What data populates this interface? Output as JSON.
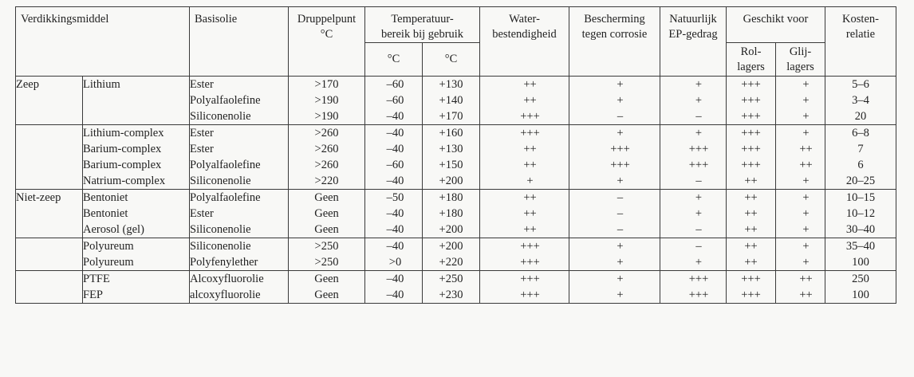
{
  "header": {
    "verdikkingsmiddel": "Verdikkingsmiddel",
    "basisolie": "Basisolie",
    "druppelpunt": [
      "Druppelpunt",
      "°C"
    ],
    "temperatuur": [
      "Temperatuur-",
      "bereik bij gebruik"
    ],
    "temp_min_unit": "°C",
    "temp_max_unit": "°C",
    "water": [
      "Water-",
      "bestendigheid"
    ],
    "corrosie": [
      "Bescherming",
      "tegen corrosie"
    ],
    "ep": [
      "Natuurlijk",
      "EP-gedrag"
    ],
    "geschikt": "Geschikt voor",
    "rol": [
      "Rol-",
      "lagers"
    ],
    "glij": [
      "Glij-",
      "lagers"
    ],
    "kosten": [
      "Kosten-",
      "relatie"
    ]
  },
  "groups": [
    {
      "category": "Zeep",
      "rows": [
        {
          "type": "Lithium",
          "base": "Ester",
          "drop": ">170",
          "tmin": "–60",
          "tmax": "+130",
          "water": "++",
          "corr": "+",
          "ep": "+",
          "rol": "+++",
          "glij": "+",
          "cost": "5–6"
        },
        {
          "type": "",
          "base": "Polyalfaolefine",
          "drop": ">190",
          "tmin": "–60",
          "tmax": "+140",
          "water": "++",
          "corr": "+",
          "ep": "+",
          "rol": "+++",
          "glij": "+",
          "cost": "3–4"
        },
        {
          "type": "",
          "base": "Siliconenolie",
          "drop": ">190",
          "tmin": "–40",
          "tmax": "+170",
          "water": "+++",
          "corr": "–",
          "ep": "–",
          "rol": "+++",
          "glij": "+",
          "cost": "20"
        }
      ]
    },
    {
      "category": "",
      "rows": [
        {
          "type": "Lithium-complex",
          "base": "Ester",
          "drop": ">260",
          "tmin": "–40",
          "tmax": "+160",
          "water": "+++",
          "corr": "+",
          "ep": "+",
          "rol": "+++",
          "glij": "+",
          "cost": "6–8"
        },
        {
          "type": "Barium-complex",
          "base": "Ester",
          "drop": ">260",
          "tmin": "–40",
          "tmax": "+130",
          "water": "++",
          "corr": "+++",
          "ep": "+++",
          "rol": "+++",
          "glij": "++",
          "cost": "7"
        },
        {
          "type": "Barium-complex",
          "base": "Polyalfaolefine",
          "drop": ">260",
          "tmin": "–60",
          "tmax": "+150",
          "water": "++",
          "corr": "+++",
          "ep": "+++",
          "rol": "+++",
          "glij": "++",
          "cost": "6"
        },
        {
          "type": "Natrium-complex",
          "base": "Siliconenolie",
          "drop": ">220",
          "tmin": "–40",
          "tmax": "+200",
          "water": "+",
          "corr": "+",
          "ep": "–",
          "rol": "++",
          "glij": "+",
          "cost": "20–25"
        }
      ]
    },
    {
      "category": "Niet-zeep",
      "rows": [
        {
          "type": "Bentoniet",
          "base": "Polyalfaolefine",
          "drop": "Geen",
          "tmin": "–50",
          "tmax": "+180",
          "water": "++",
          "corr": "–",
          "ep": "+",
          "rol": "++",
          "glij": "+",
          "cost": "10–15"
        },
        {
          "type": "Bentoniet",
          "base": "Ester",
          "drop": "Geen",
          "tmin": "–40",
          "tmax": "+180",
          "water": "++",
          "corr": "–",
          "ep": "+",
          "rol": "++",
          "glij": "+",
          "cost": "10–12"
        },
        {
          "type": "Aerosol (gel)",
          "base": "Siliconenolie",
          "drop": "Geen",
          "tmin": "–40",
          "tmax": "+200",
          "water": "++",
          "corr": "–",
          "ep": "–",
          "rol": "++",
          "glij": "+",
          "cost": "30–40"
        }
      ]
    },
    {
      "category": "",
      "rows": [
        {
          "type": "Polyureum",
          "base": "Siliconenolie",
          "drop": ">250",
          "tmin": "–40",
          "tmax": "+200",
          "water": "+++",
          "corr": "+",
          "ep": "–",
          "rol": "++",
          "glij": "+",
          "cost": "35–40"
        },
        {
          "type": "Polyureum",
          "base": "Polyfenylether",
          "drop": ">250",
          "tmin": ">0",
          "tmax": "+220",
          "water": "+++",
          "corr": "+",
          "ep": "+",
          "rol": "++",
          "glij": "+",
          "cost": "100"
        }
      ]
    },
    {
      "category": "",
      "rows": [
        {
          "type": "PTFE",
          "base": "Alcoxyfluorolie",
          "drop": "Geen",
          "tmin": "–40",
          "tmax": "+250",
          "water": "+++",
          "corr": "+",
          "ep": "+++",
          "rol": "+++",
          "glij": "++",
          "cost": "250"
        },
        {
          "type": "FEP",
          "base": "alcoxyfluorolie",
          "drop": "Geen",
          "tmin": "–40",
          "tmax": "+230",
          "water": "+++",
          "corr": "+",
          "ep": "+++",
          "rol": "+++",
          "glij": "++",
          "cost": "100"
        }
      ]
    }
  ]
}
